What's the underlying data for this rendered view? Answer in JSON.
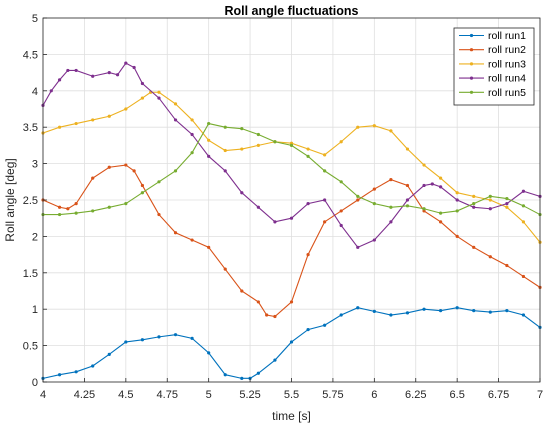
{
  "chart_data": {
    "type": "line",
    "title": "Roll angle fluctuations",
    "xlabel": "time [s]",
    "ylabel": "Roll angle [deg]",
    "xlim": [
      4,
      7
    ],
    "ylim": [
      0,
      5
    ],
    "x_ticks": [
      4,
      4.25,
      4.5,
      4.75,
      5,
      5.25,
      5.5,
      5.75,
      6,
      6.25,
      6.5,
      6.75,
      7
    ],
    "y_ticks": [
      0,
      0.5,
      1,
      1.5,
      2,
      2.5,
      3,
      3.5,
      4,
      4.5,
      5
    ],
    "grid": true,
    "legend_position": "top-right",
    "series": [
      {
        "name": "roll run1",
        "color": "#0072BD",
        "x": [
          4.0,
          4.1,
          4.2,
          4.3,
          4.4,
          4.5,
          4.6,
          4.7,
          4.8,
          4.9,
          5.0,
          5.1,
          5.2,
          5.25,
          5.3,
          5.4,
          5.5,
          5.6,
          5.7,
          5.8,
          5.9,
          6.0,
          6.1,
          6.2,
          6.3,
          6.4,
          6.5,
          6.6,
          6.7,
          6.8,
          6.9,
          7.0
        ],
        "y": [
          0.05,
          0.1,
          0.14,
          0.22,
          0.38,
          0.55,
          0.58,
          0.62,
          0.65,
          0.6,
          0.4,
          0.1,
          0.05,
          0.05,
          0.12,
          0.3,
          0.55,
          0.72,
          0.78,
          0.92,
          1.02,
          0.97,
          0.92,
          0.95,
          1.0,
          0.98,
          1.02,
          0.98,
          0.96,
          0.98,
          0.92,
          0.75
        ]
      },
      {
        "name": "roll run2",
        "color": "#D95319",
        "x": [
          4.0,
          4.1,
          4.15,
          4.2,
          4.3,
          4.4,
          4.5,
          4.55,
          4.6,
          4.7,
          4.8,
          4.9,
          5.0,
          5.1,
          5.2,
          5.3,
          5.35,
          5.4,
          5.5,
          5.6,
          5.7,
          5.8,
          5.9,
          6.0,
          6.1,
          6.2,
          6.3,
          6.4,
          6.5,
          6.6,
          6.7,
          6.8,
          6.9,
          7.0
        ],
        "y": [
          2.5,
          2.4,
          2.38,
          2.45,
          2.8,
          2.95,
          2.98,
          2.9,
          2.7,
          2.3,
          2.05,
          1.95,
          1.85,
          1.55,
          1.25,
          1.1,
          0.92,
          0.9,
          1.1,
          1.75,
          2.2,
          2.35,
          2.5,
          2.65,
          2.78,
          2.7,
          2.35,
          2.2,
          2.0,
          1.85,
          1.72,
          1.6,
          1.45,
          1.3
        ]
      },
      {
        "name": "roll run3",
        "color": "#EDB120",
        "x": [
          4.0,
          4.1,
          4.2,
          4.3,
          4.4,
          4.5,
          4.6,
          4.65,
          4.7,
          4.8,
          4.9,
          5.0,
          5.1,
          5.2,
          5.3,
          5.4,
          5.5,
          5.6,
          5.7,
          5.8,
          5.9,
          6.0,
          6.1,
          6.2,
          6.3,
          6.4,
          6.5,
          6.6,
          6.7,
          6.8,
          6.9,
          7.0
        ],
        "y": [
          3.42,
          3.5,
          3.55,
          3.6,
          3.65,
          3.75,
          3.9,
          3.98,
          3.98,
          3.82,
          3.6,
          3.32,
          3.18,
          3.2,
          3.25,
          3.3,
          3.28,
          3.2,
          3.12,
          3.3,
          3.5,
          3.52,
          3.45,
          3.2,
          2.98,
          2.8,
          2.6,
          2.55,
          2.5,
          2.4,
          2.2,
          1.92
        ]
      },
      {
        "name": "roll run4",
        "color": "#7E2F8E",
        "x": [
          4.0,
          4.05,
          4.1,
          4.15,
          4.2,
          4.3,
          4.4,
          4.45,
          4.5,
          4.55,
          4.6,
          4.7,
          4.8,
          4.9,
          5.0,
          5.1,
          5.2,
          5.3,
          5.4,
          5.5,
          5.6,
          5.7,
          5.8,
          5.9,
          6.0,
          6.1,
          6.2,
          6.3,
          6.35,
          6.4,
          6.5,
          6.6,
          6.7,
          6.8,
          6.9,
          7.0
        ],
        "y": [
          3.8,
          4.0,
          4.15,
          4.28,
          4.28,
          4.2,
          4.25,
          4.22,
          4.38,
          4.32,
          4.1,
          3.9,
          3.6,
          3.4,
          3.1,
          2.9,
          2.6,
          2.4,
          2.2,
          2.25,
          2.45,
          2.5,
          2.15,
          1.85,
          1.95,
          2.2,
          2.5,
          2.7,
          2.72,
          2.68,
          2.5,
          2.4,
          2.38,
          2.45,
          2.62,
          2.55
        ]
      },
      {
        "name": "roll run5",
        "color": "#77AC30",
        "x": [
          4.0,
          4.1,
          4.2,
          4.3,
          4.4,
          4.5,
          4.6,
          4.7,
          4.8,
          4.9,
          5.0,
          5.1,
          5.2,
          5.3,
          5.4,
          5.5,
          5.6,
          5.7,
          5.8,
          5.9,
          6.0,
          6.1,
          6.2,
          6.3,
          6.4,
          6.5,
          6.6,
          6.7,
          6.8,
          6.9,
          7.0
        ],
        "y": [
          2.3,
          2.3,
          2.32,
          2.35,
          2.4,
          2.45,
          2.6,
          2.75,
          2.9,
          3.15,
          3.55,
          3.5,
          3.48,
          3.4,
          3.3,
          3.25,
          3.1,
          2.9,
          2.75,
          2.55,
          2.45,
          2.4,
          2.42,
          2.38,
          2.32,
          2.35,
          2.45,
          2.55,
          2.52,
          2.42,
          2.3
        ]
      }
    ]
  }
}
